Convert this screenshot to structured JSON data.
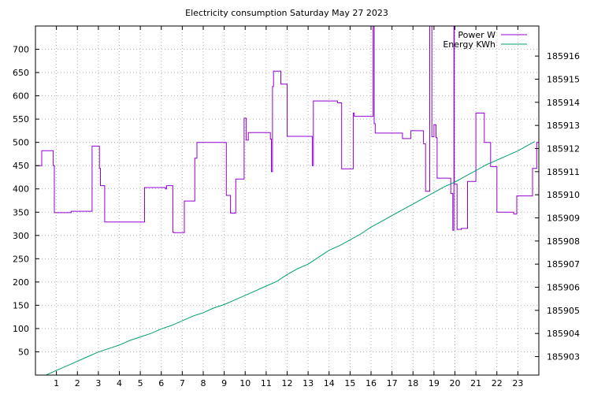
{
  "chart_data": {
    "type": "line",
    "title": "Electricity consumption Saturday May 27 2023",
    "grid": true,
    "legend_position": "top-right",
    "x_ticks": [
      "1",
      "2",
      "3",
      "4",
      "5",
      "6",
      "7",
      "8",
      "9",
      "10",
      "11",
      "12",
      "13",
      "14",
      "15",
      "16",
      "17",
      "18",
      "19",
      "20",
      "21",
      "22",
      "23"
    ],
    "xlim": [
      0,
      24
    ],
    "y_left": {
      "lim": [
        0,
        750
      ],
      "ticks": [
        50,
        100,
        150,
        200,
        250,
        300,
        350,
        400,
        450,
        500,
        550,
        600,
        650,
        700
      ]
    },
    "y_right": {
      "lim": [
        185902.2,
        185917.3
      ],
      "ticks": [
        185903,
        185904,
        185905,
        185906,
        185907,
        185908,
        185909,
        185910,
        185911,
        185912,
        185913,
        185914,
        185915,
        185916
      ]
    },
    "series": [
      {
        "name": "Power W",
        "axis": "left",
        "color": "#9400d3",
        "step": true,
        "x": [
          0.0,
          0.3,
          0.85,
          0.9,
          1.7,
          2.7,
          3.05,
          3.1,
          3.3,
          5.2,
          6.2,
          6.25,
          6.55,
          6.6,
          7.1,
          7.6,
          7.7,
          9.1,
          9.3,
          9.55,
          9.95,
          10.05,
          10.15,
          11.2,
          11.25,
          11.3,
          11.35,
          11.7,
          12.0,
          12.1,
          13.2,
          13.25,
          14.0,
          14.4,
          14.6,
          15.1,
          15.15,
          15.2,
          16.05,
          16.1,
          16.15,
          16.2,
          16.5,
          17.0,
          17.5,
          17.9,
          18.5,
          18.6,
          18.8,
          18.9,
          19.0,
          19.1,
          19.15,
          19.7,
          19.8,
          19.9,
          19.95,
          19.97,
          20.1,
          20.3,
          20.6,
          21.0,
          21.4,
          21.7,
          22.0,
          22.75,
          22.8,
          22.95,
          23.7,
          23.9
        ],
        "values": [
          450,
          482,
          450,
          349,
          352,
          492,
          444,
          407,
          329,
          403,
          400,
          407,
          307,
          306,
          374,
          466,
          500,
          386,
          348,
          421,
          552,
          505,
          521,
          507,
          437,
          620,
          653,
          625,
          513,
          513,
          450,
          589,
          589,
          585,
          443,
          443,
          563,
          556,
          556,
          850,
          540,
          520,
          520,
          520,
          508,
          525,
          497,
          395,
          850,
          512,
          538,
          510,
          423,
          423,
          390,
          311,
          850,
          410,
          313,
          315,
          416,
          563,
          500,
          448,
          350,
          350,
          346,
          385,
          444,
          500
        ]
      },
      {
        "name": "Energy KWh",
        "axis": "right",
        "color": "#009e73",
        "x": [
          0.5,
          1.0,
          1.5,
          2.0,
          2.5,
          3.0,
          3.5,
          4.0,
          4.5,
          5.0,
          5.5,
          6.0,
          6.5,
          7.0,
          7.5,
          8.0,
          8.5,
          9.0,
          9.5,
          10.0,
          10.5,
          11.0,
          11.5,
          12.0,
          12.5,
          13.0,
          13.5,
          14.0,
          14.5,
          15.0,
          15.5,
          16.0,
          16.5,
          17.0,
          17.5,
          18.0,
          18.5,
          19.0,
          19.5,
          20.0,
          20.5,
          21.0,
          21.5,
          22.0,
          22.5,
          23.0,
          23.5,
          23.8
        ],
        "values": [
          185902.2,
          185902.4,
          185902.6,
          185902.8,
          185903.0,
          185903.2,
          185903.35,
          185903.5,
          185903.7,
          185903.85,
          185904.0,
          185904.2,
          185904.35,
          185904.55,
          185904.75,
          185904.9,
          185905.1,
          185905.25,
          185905.45,
          185905.65,
          185905.85,
          185906.05,
          185906.25,
          185906.55,
          185906.8,
          185907.0,
          185907.3,
          185907.6,
          185907.8,
          185908.05,
          185908.3,
          185908.6,
          185908.85,
          185909.1,
          185909.35,
          185909.6,
          185909.85,
          185910.1,
          185910.35,
          185910.55,
          185910.8,
          185911.05,
          185911.3,
          185911.5,
          185911.7,
          185911.9,
          185912.15,
          185912.3
        ]
      }
    ]
  }
}
